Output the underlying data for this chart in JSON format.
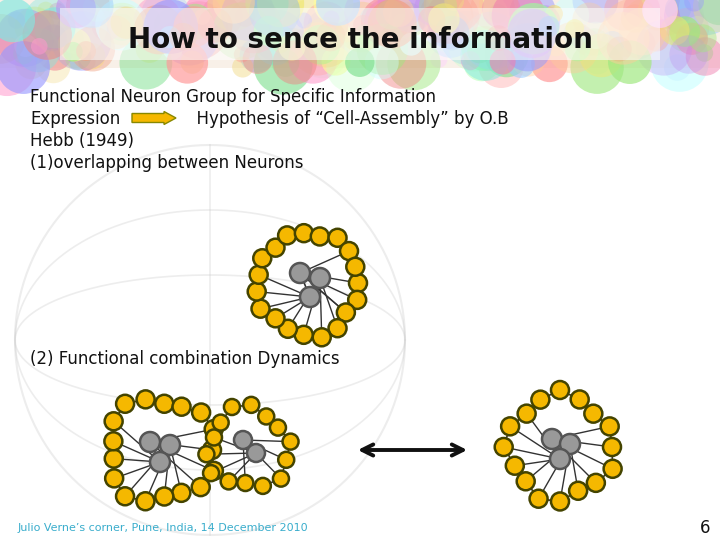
{
  "title": "How to sence the information",
  "title_color": "#111111",
  "title_fontsize": 20,
  "bg_color": "#ffffff",
  "text_line1": "Functional Neuron Group for Specific Information",
  "text_line2": "Expression",
  "text_line2b": "  Hypothesis of “Cell-Assembly” by O.B",
  "text_line3": "Hebb (1949)",
  "text_line4": "(1)overlapping between Neurons",
  "text_line5": "(2) Functional combination Dynamics",
  "footer": "Julio Verne’s corner, Pune, India, 14 December 2010",
  "footer_color": "#3aadcc",
  "page_num": "6",
  "node_yellow": "#F5B800",
  "node_outline": "#444400",
  "node_gray": "#999999",
  "node_gray_outline": "#555555",
  "edge_color": "#333333",
  "arrow_fill": "#F5B800",
  "arrow_edge": "#888800",
  "double_arrow_color": "#111111",
  "text_color": "#111111",
  "text_fontsize": 12,
  "watermark_color": "#cccccc",
  "header_colors": [
    "#f4a0a0",
    "#a0c4f4",
    "#a0f4a8",
    "#f4e2a0",
    "#c4a0f4",
    "#f4b8a0",
    "#a0f4e8",
    "#f4a0c8",
    "#b8f4a0",
    "#f4f4a0",
    "#a0b8f4",
    "#f4a0a0",
    "#c8f4a0",
    "#a0f4c8",
    "#f4c8a0"
  ]
}
